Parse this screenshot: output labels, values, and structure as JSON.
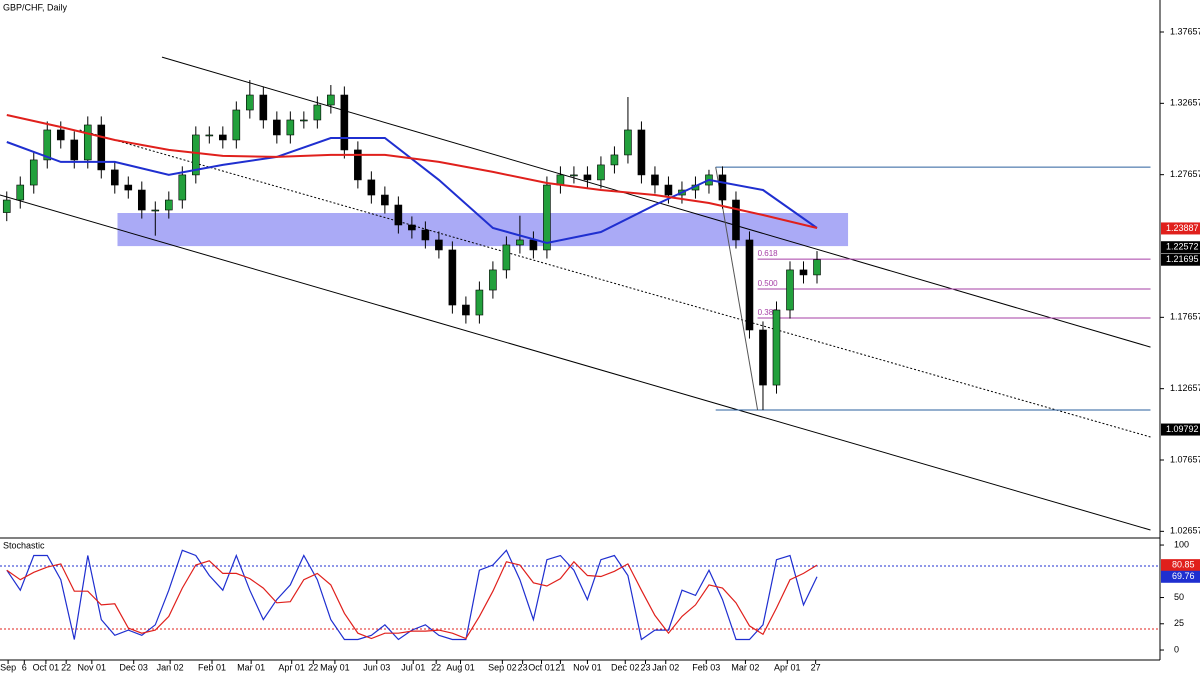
{
  "chart_data": [
    {
      "type": "candlestick",
      "title": "GBP/CHF, Daily",
      "xlim": [
        -0.5,
        85.4
      ],
      "ylim": [
        1.0219,
        1.399
      ],
      "yticks": [
        1.02657,
        1.07657,
        1.12657,
        1.17657,
        1.27657,
        1.32657,
        1.37657
      ],
      "xticks": [
        {
          "value": 0.1,
          "label": "Sep"
        },
        {
          "value": 1.3,
          "label": "6"
        },
        {
          "value": 2.9,
          "label": "Oct 01"
        },
        {
          "value": 4.4,
          "label": "22"
        },
        {
          "value": 6.3,
          "label": "Nov 01"
        },
        {
          "value": 9.4,
          "label": "Dec 03"
        },
        {
          "value": 12.1,
          "label": "Jan 02"
        },
        {
          "value": 15.2,
          "label": "Feb 01"
        },
        {
          "value": 18.1,
          "label": "Mar 01"
        },
        {
          "value": 21.1,
          "label": "Apr 01"
        },
        {
          "value": 22.7,
          "label": "22"
        },
        {
          "value": 24.3,
          "label": "May 01"
        },
        {
          "value": 27.4,
          "label": "Jun 03"
        },
        {
          "value": 30.1,
          "label": "Jul 01"
        },
        {
          "value": 31.8,
          "label": "22"
        },
        {
          "value": 33.6,
          "label": "Aug 01"
        },
        {
          "value": 36.7,
          "label": "Sep 02"
        },
        {
          "value": 38.2,
          "label": "23"
        },
        {
          "value": 39.6,
          "label": "Oct 01"
        },
        {
          "value": 41.0,
          "label": "21"
        },
        {
          "value": 43.0,
          "label": "Nov 01"
        },
        {
          "value": 45.8,
          "label": "Dec 02"
        },
        {
          "value": 47.3,
          "label": "23"
        },
        {
          "value": 48.8,
          "label": "Jan 02"
        },
        {
          "value": 51.8,
          "label": "Feb 03"
        },
        {
          "value": 54.7,
          "label": "Mar 02"
        },
        {
          "value": 57.8,
          "label": "Apr 01"
        },
        {
          "value": 59.9,
          "label": "27"
        }
      ],
      "up_color": "#22a03c",
      "down_color": "#000000",
      "open": [
        1.25,
        1.2588,
        1.2693,
        1.2869,
        1.3079,
        1.3009,
        1.2869,
        1.3114,
        1.2799,
        1.2693,
        1.2658,
        1.2518,
        1.2518,
        1.2588,
        1.2764,
        1.3044,
        1.3044,
        1.3009,
        1.3219,
        1.3324,
        1.3149,
        1.3044,
        1.3149,
        1.3149,
        1.3254,
        1.3324,
        1.2939,
        1.2729,
        1.2623,
        1.2553,
        1.2413,
        1.2378,
        1.2308,
        1.2238,
        1.1852,
        1.1782,
        1.1957,
        1.2098,
        1.2273,
        1.2308,
        1.2238,
        1.2693,
        1.2764,
        1.2764,
        1.2729,
        1.2834,
        1.2904,
        1.3079,
        1.2764,
        1.2693,
        1.2623,
        1.2658,
        1.2693,
        1.2764,
        1.2588,
        1.2308,
        1.1677,
        1.1291,
        1.1817,
        1.2098,
        1.2063
      ],
      "high": [
        1.2648,
        1.2753,
        1.2929,
        1.3139,
        1.3139,
        1.3069,
        1.3174,
        1.3174,
        1.2859,
        1.2753,
        1.2718,
        1.2578,
        1.2648,
        1.2824,
        1.3104,
        1.3104,
        1.3104,
        1.3279,
        1.3429,
        1.3384,
        1.3209,
        1.3209,
        1.3209,
        1.3314,
        1.3394,
        1.3384,
        1.2999,
        1.2789,
        1.2683,
        1.2613,
        1.2473,
        1.2438,
        1.2368,
        1.2298,
        1.1912,
        1.2017,
        1.2158,
        1.2333,
        1.2478,
        1.2368,
        1.2753,
        1.2824,
        1.2824,
        1.2824,
        1.2894,
        1.2964,
        1.331,
        1.3139,
        1.2824,
        1.2753,
        1.2718,
        1.2753,
        1.28,
        1.2824,
        1.2648,
        1.2368,
        1.1737,
        1.1877,
        1.2158,
        1.2158,
        1.223
      ],
      "low": [
        1.244,
        1.2528,
        1.2633,
        1.2809,
        1.2949,
        1.2809,
        1.2809,
        1.2739,
        1.2633,
        1.2598,
        1.2458,
        1.2338,
        1.2458,
        1.2528,
        1.2704,
        1.2984,
        1.2949,
        1.2949,
        1.3159,
        1.3089,
        1.2984,
        1.2984,
        1.3089,
        1.3089,
        1.3194,
        1.2879,
        1.2669,
        1.2563,
        1.2493,
        1.2353,
        1.2318,
        1.2248,
        1.2178,
        1.1792,
        1.1722,
        1.1722,
        1.1897,
        1.2038,
        1.2213,
        1.2178,
        1.2178,
        1.2633,
        1.2704,
        1.2669,
        1.2669,
        1.2774,
        1.2844,
        1.2704,
        1.2633,
        1.2563,
        1.2563,
        1.2598,
        1.2633,
        1.2528,
        1.2248,
        1.1617,
        1.1116,
        1.1231,
        1.1757,
        1.2003,
        1.2003
      ],
      "close": [
        1.2588,
        1.2693,
        1.2869,
        1.3079,
        1.3009,
        1.2869,
        1.3114,
        1.2799,
        1.2693,
        1.2658,
        1.2518,
        1.2518,
        1.2588,
        1.2764,
        1.3044,
        1.3044,
        1.3009,
        1.3219,
        1.3324,
        1.3149,
        1.3044,
        1.3149,
        1.3149,
        1.3254,
        1.3324,
        1.2939,
        1.2729,
        1.2623,
        1.2553,
        1.2413,
        1.2378,
        1.2308,
        1.2238,
        1.1852,
        1.1782,
        1.1957,
        1.2098,
        1.2273,
        1.2308,
        1.2238,
        1.2693,
        1.2764,
        1.2764,
        1.2729,
        1.2834,
        1.2904,
        1.3079,
        1.2764,
        1.2693,
        1.2623,
        1.2658,
        1.2693,
        1.2764,
        1.2588,
        1.2308,
        1.1677,
        1.1291,
        1.1817,
        1.2098,
        1.2063,
        1.217
      ],
      "zone": {
        "x": [
          8.2,
          62.3
        ],
        "values": [
          1.2265,
          1.2497
        ],
        "color": "#9b9bf5"
      },
      "moving_averages": [
        {
          "color": "#1f2fd0",
          "x": [
            0,
            4,
            8,
            12,
            16,
            20,
            24,
            28,
            32,
            36,
            40,
            44,
            48,
            52,
            56,
            60
          ],
          "values": [
            1.2995,
            1.2855,
            1.2855,
            1.2764,
            1.2834,
            1.289,
            1.3023,
            1.3023,
            1.2729,
            1.2392,
            1.2287,
            1.2364,
            1.2553,
            1.2729,
            1.2658,
            1.2392
          ]
        },
        {
          "color": "#e0201c",
          "x": [
            0,
            4,
            8,
            12,
            16,
            20,
            24,
            28,
            32,
            36,
            40,
            44,
            48,
            52,
            56,
            60
          ],
          "values": [
            1.3184,
            1.31,
            1.3009,
            1.2939,
            1.2897,
            1.289,
            1.2904,
            1.2904,
            1.2855,
            1.2785,
            1.2707,
            1.2658,
            1.2623,
            1.2567,
            1.2483,
            1.2392
          ]
        }
      ],
      "trend_lines": [
        {
          "color": "#000000",
          "dashed": false,
          "x": [
            11.5,
            84.7
          ],
          "values": [
            1.359,
            1.1557
          ]
        },
        {
          "color": "#000000",
          "dashed": true,
          "x": [
            5.4,
            84.7
          ],
          "values": [
            1.3079,
            1.0927
          ]
        },
        {
          "color": "#000000",
          "dashed": false,
          "x": [
            -0.5,
            84.7
          ],
          "values": [
            1.2623,
            1.0275
          ]
        },
        {
          "color": "#2a5f9e",
          "dashed": false,
          "x": [
            52.5,
            84.7
          ],
          "values": [
            1.2819,
            1.2819
          ]
        },
        {
          "color": "#2a5f9e",
          "dashed": false,
          "x": [
            52.5,
            84.7
          ],
          "values": [
            1.1116,
            1.1116
          ]
        },
        {
          "color": "#555555",
          "dashed": false,
          "x": [
            52.5,
            55.6
          ],
          "values": [
            1.2819,
            1.1116
          ]
        }
      ],
      "fibonacci": {
        "color": "#a63fa6",
        "x": [
          55.6,
          84.7
        ],
        "levels": [
          {
            "label": "0.618",
            "value": 1.2174
          },
          {
            "label": "0.500",
            "value": 1.1964
          },
          {
            "label": "0.382",
            "value": 1.1761
          }
        ]
      },
      "price_tags": [
        {
          "value": 1.23887,
          "color": "#e0201c"
        },
        {
          "value": 1.22572,
          "color": "#000000"
        },
        {
          "value": 1.21695,
          "color": "#000000"
        },
        {
          "value": 1.09792,
          "color": "#000000"
        }
      ]
    },
    {
      "type": "line",
      "title": "Stochastic",
      "ylim": [
        -9.5,
        104.8
      ],
      "yticks": [
        0,
        25,
        50,
        100
      ],
      "levels": [
        {
          "value": 80,
          "color": "#1f2fd0"
        },
        {
          "value": 20,
          "color": "#e0201c"
        }
      ],
      "series": [
        {
          "color": "#1f2fd0",
          "values": [
            76,
            57,
            90,
            90,
            67,
            10,
            90,
            29,
            14,
            19,
            14,
            24,
            57,
            95,
            90,
            71,
            57,
            90,
            57,
            29,
            48,
            62,
            90,
            67,
            29,
            10,
            10,
            14,
            24,
            10,
            19,
            24,
            14,
            10,
            10,
            76,
            81,
            95,
            67,
            29,
            86,
            90,
            76,
            48,
            86,
            90,
            71,
            10,
            19,
            19,
            57,
            52,
            76,
            48,
            10,
            10,
            24,
            86,
            90,
            43,
            69.76
          ]
        },
        {
          "color": "#e0201c",
          "values": [
            76,
            67,
            74,
            79,
            82,
            56,
            56,
            43,
            44,
            21,
            16,
            19,
            32,
            59,
            81,
            85,
            73,
            73,
            68,
            59,
            45,
            46,
            67,
            73,
            62,
            35,
            16,
            11,
            16,
            16,
            18,
            18,
            19,
            16,
            11,
            32,
            56,
            84,
            81,
            64,
            61,
            68,
            84,
            71,
            70,
            75,
            82,
            57,
            33,
            16,
            32,
            43,
            62,
            59,
            45,
            23,
            15,
            40,
            67,
            73,
            80.85
          ]
        }
      ],
      "value_tags": [
        {
          "value": 80.85,
          "color": "#e0201c"
        },
        {
          "value": 69.76,
          "color": "#1f2fd0"
        }
      ]
    }
  ]
}
